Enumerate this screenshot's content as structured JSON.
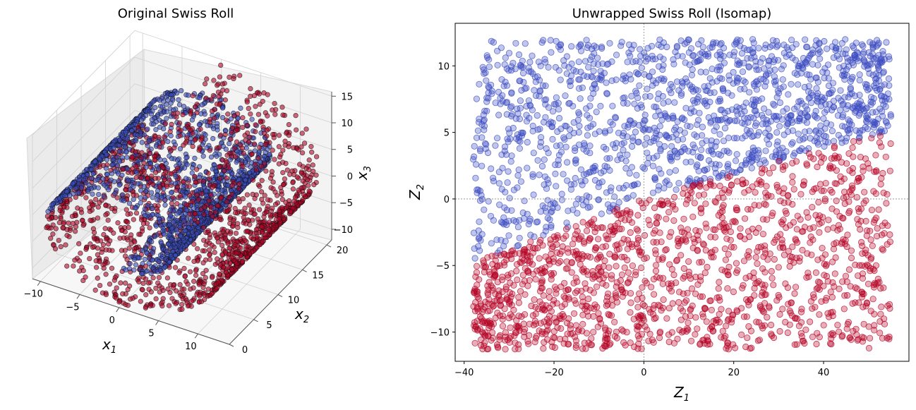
{
  "chart_data": [
    {
      "type": "scatter",
      "subtype": "3d-scatter",
      "title": "Original Swiss Roll",
      "xlabel": {
        "main": "x",
        "sub": "1"
      },
      "ylabel": {
        "main": "x",
        "sub": "2"
      },
      "zlabel": {
        "main": "x",
        "sub": "3"
      },
      "xticks": [
        "−10",
        "−5",
        "0",
        "5",
        "10"
      ],
      "yticks": [
        "0",
        "5",
        "10",
        "15",
        "20"
      ],
      "zticks": [
        "−10",
        "−5",
        "0",
        "5",
        "10",
        "15"
      ],
      "xlim": [
        -11,
        14
      ],
      "ylim": [
        0,
        21
      ],
      "zlim": [
        -12,
        15
      ],
      "grid": true,
      "series": [
        {
          "color": "#3b4cc0",
          "point_count": 1500
        },
        {
          "color": "#b40426",
          "point_count": 1500
        }
      ],
      "generator": {
        "t_range": [
          4.71,
          14.14
        ],
        "split_t": 9.42,
        "x": "t*cos(t)",
        "z": "t*sin(t)",
        "y_range": [
          0,
          21
        ]
      }
    },
    {
      "type": "scatter",
      "title": "Unwrapped Swiss Roll (Isomap)",
      "xlabel": {
        "main": "Z",
        "sub": "1"
      },
      "ylabel": {
        "main": "Z",
        "sub": "2"
      },
      "xlim": [
        -42,
        59
      ],
      "ylim": [
        -12.2,
        13.2
      ],
      "xticks": [
        -40,
        -20,
        0,
        20,
        40
      ],
      "yticks": [
        -10,
        -5,
        0,
        5,
        10
      ],
      "xtick_labels": [
        "−40",
        "−20",
        "0",
        "20",
        "40"
      ],
      "ytick_labels": [
        "−10",
        "−5",
        "0",
        "5",
        "10"
      ],
      "reference_lines": {
        "x": 0,
        "y": 0,
        "style": "dotted grey"
      },
      "series": [
        {
          "color": "#3b4cc0",
          "point_count": 1500,
          "region": "upper",
          "x_range": [
            -38,
            55
          ],
          "y_range": [
            -5.5,
            12
          ]
        },
        {
          "color": "#b40426",
          "point_count": 1500,
          "region": "lower",
          "x_range": [
            -38,
            55
          ],
          "y_range": [
            -11.3,
            4.5
          ]
        }
      ],
      "boundary": {
        "x": [
          -38,
          0,
          55
        ],
        "y": [
          -4.8,
          0,
          5.2
        ]
      }
    }
  ]
}
